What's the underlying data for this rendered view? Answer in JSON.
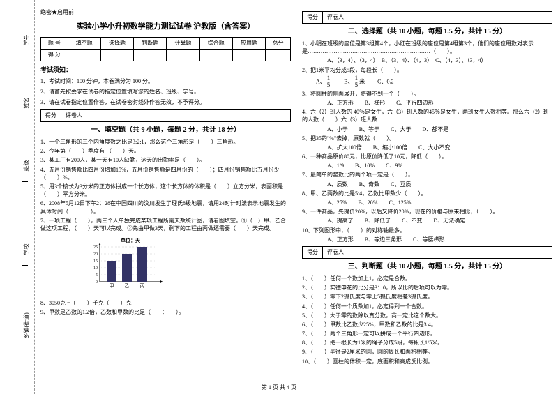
{
  "binding": {
    "labels": [
      "学号",
      "姓名",
      "班级",
      "学校",
      "乡镇(街道)"
    ],
    "marks": [
      "题",
      "名",
      "本",
      "内",
      "线",
      "封",
      "密"
    ]
  },
  "secret": "绝密★启用前",
  "title": "实验小学小升初数学能力测试试卷 沪教版（含答案）",
  "score_table": {
    "headers": [
      "题 号",
      "填空题",
      "选择题",
      "判断题",
      "计算题",
      "综合题",
      "应用题",
      "总分"
    ],
    "score_label": "得 分"
  },
  "notice": {
    "title": "考试须知：",
    "items": [
      "1、考试时间：100 分钟，本卷满分为 100 分。",
      "2、请首先按要求在试卷的指定位置填写您的姓名、班级、学号。",
      "3、请在试卷指定位置作答，在试卷密封线外作答无效，不予评分。"
    ]
  },
  "score_row": {
    "score": "得分",
    "reviewer": "评卷人"
  },
  "sections": {
    "s1": {
      "title": "一、填空题（共 9 小题，每题 2 分，共计 18 分）",
      "items": [
        "1、一个三角形的三个内角度数之比是3:2:1，那么这个三角形是（　　）三角形。",
        "2、今年第（　　）季度有 （　　）天。",
        "3、某工厂有200人，某一天有10人缺勤，这天的出勤率是（　　）。",
        "4、五月份销售额比四月份增加15%，五月份销售额是四月份的（　　）；四月份销售额比五月份少（　　）%。",
        "5、用3个棱长为3分米的正方体拼成一个长方体，这个长方体的体积是（　　）立方分米，表面积是（　　）平方分米。",
        "6、2008年5月12日下午2：28在中国四川的汶川发生了理氏8级地震，请用24时计时法表示地震发生的具体时间（　　　　）。",
        "7、一项工程（　　），两三个人单独完成某项工程所需天数统计图，请看图填空。①（　）甲、乙合做这项工程，（　　）天可以完成。②先由甲做3天，剩下的工程由丙做还需要（　　）天完成。"
      ]
    },
    "s1_tail": [
      "8、3050克 =（　　）千克（　　）克",
      "9、甲数是乙数的1.2倍，乙数和甲数的比是（　　：　　）。"
    ],
    "s2": {
      "title": "二、选择题（共 10 小题，每题 1.5 分，共计 15 分）",
      "items": [
        "1、小明在班级的座位是第3组第4个，小红在班级的座位是第4组第3个，他们的座位用数对表示是…………………………………………………………（　　）。",
        "　　A、（3，4）、（3，4）　B、（3，4）、（4，3）　C、（4，3）、（3，4）",
        "2、把1米平均分成5段，每段长（　　）。",
        "3、将圆柱的侧面展开，将得不到一个（　　）。",
        "　　A、正方形　　B、梯形　　C、平行四边形",
        "4、六（2）班人数的 40％是女生，六（3）班人数的45％是女生，两班女生人数相等。那么六（2）班的人数（　　）六（3）班人数",
        "　　A、小于　　B、等于　　C、大于　　D、都不是",
        "5、把35的\"%\"去掉，原数就（　　）。",
        "　　A、扩大100倍　　B、缩小100倍　　C、大小不变",
        "6、一种商品原价80元，比原价降低了10元，降低（　　）。",
        "　　A、1/9　　B、10%　　C、9%",
        "7、最简单的整数比的两个项一定是（　　）。",
        "　　A、质数　　B、奇数　　C、互质",
        "8、甲、乙两数的比是5:4，乙数比甲数少（　　）。",
        "　　A、25%　　B、20%　　C、125%",
        "9、一件商品，先提价20%，以后又降价20%，现在的价格与原来相比，（　　）。",
        "　　A、提高了　　B、降低了　　C、不变　　D、无法确定",
        "10、下列图形中，（　　）的对称轴最多。",
        "　　A、正方形　　B、等边三角形　　C、等腰梯形"
      ],
      "q2_options": {
        "A": "A、",
        "B": "B、",
        "B_unit": "米",
        "C": "C、0.2"
      }
    },
    "s3": {
      "title": "三、判断题（共 10 小题，每题 1.5 分，共计 15 分）",
      "items": [
        "1、（　　）任何一个数加上1，必定是合数。",
        "2、（　　）实德申花的比分是3：0，所以比的后项可以为零。",
        "3、（　　）零下2摄氏度与零上5摄氏度相差3摄氏度。",
        "4、（　　）任何一个质数加1，必定得到一个合数。",
        "5、（　　）大于零的数除以真分数，商一定比这个数大。",
        "6、（　　）甲数比乙数少25%，甲数和乙数的比是3:4。",
        "7、（　　）两个三角形一定可以拼成一个平行四边形。",
        "8、（　　）把一根长为1米的绳子分成5段，每段长1/5米。",
        "9、（　　）半径是2厘米的圆，圆的周长和面积相等。",
        "10、（　　）圆柱的体积一定，底面积和高成反比例。"
      ]
    }
  },
  "chart": {
    "title": "单位：天",
    "ylabels": [
      "25",
      "20",
      "15",
      "10",
      "5",
      "0"
    ],
    "xlabels": [
      "甲",
      "乙",
      "丙"
    ],
    "values": [
      15,
      20,
      25
    ],
    "bar_color": "#333366",
    "axis_color": "#000000",
    "ymax": 25,
    "width": 120,
    "height": 70
  },
  "footer": "第 1 页  共 4 页"
}
